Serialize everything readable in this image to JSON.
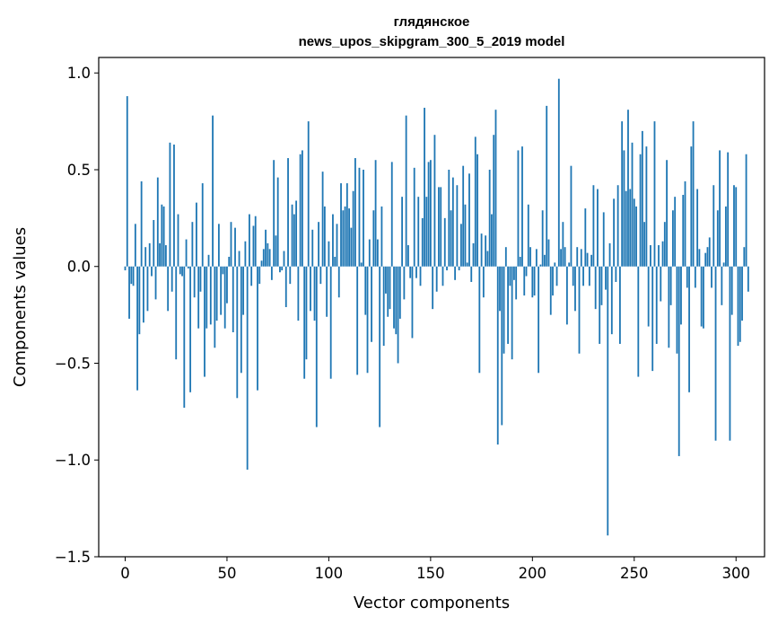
{
  "chart_data": {
    "type": "bar",
    "title_line1": "глядянское",
    "title_line2": "news_upos_skipgram_300_5_2019 model",
    "xlabel": "Vector components",
    "ylabel": "Components values",
    "xlim": [
      -13,
      314
    ],
    "ylim": [
      -1.5,
      1.08
    ],
    "xticks": [
      0,
      50,
      100,
      150,
      200,
      250,
      300
    ],
    "xtick_labels": [
      "0",
      "50",
      "100",
      "150",
      "200",
      "250",
      "300"
    ],
    "yticks": [
      -1.5,
      -1.0,
      -0.5,
      0.0,
      0.5,
      1.0
    ],
    "ytick_labels": [
      "−1.5",
      "−1.0",
      "−0.5",
      "0.0",
      "0.5",
      "1.0"
    ],
    "bar_color": "#1f77b4",
    "values": [
      -0.02,
      0.88,
      -0.27,
      -0.09,
      -0.1,
      0.22,
      -0.64,
      -0.35,
      0.44,
      -0.29,
      0.1,
      -0.23,
      0.12,
      -0.05,
      0.24,
      -0.17,
      0.46,
      0.12,
      0.32,
      0.31,
      0.11,
      -0.23,
      0.64,
      -0.13,
      0.63,
      -0.48,
      0.27,
      -0.04,
      -0.05,
      -0.73,
      0.14,
      -0.01,
      -0.65,
      0.23,
      -0.16,
      0.33,
      -0.32,
      -0.13,
      0.43,
      -0.57,
      -0.32,
      0.06,
      -0.3,
      0.78,
      -0.42,
      -0.28,
      0.22,
      -0.25,
      -0.04,
      -0.32,
      -0.19,
      0.05,
      0.23,
      -0.34,
      0.2,
      -0.68,
      0.08,
      -0.55,
      -0.25,
      0.13,
      -1.05,
      0.27,
      -0.1,
      0.21,
      0.26,
      -0.64,
      -0.09,
      0.03,
      0.09,
      0.19,
      0.12,
      0.09,
      -0.07,
      0.55,
      0.16,
      0.46,
      -0.03,
      -0.02,
      0.08,
      -0.21,
      0.56,
      -0.09,
      0.32,
      0.27,
      0.34,
      -0.28,
      0.58,
      0.6,
      -0.58,
      -0.48,
      0.75,
      -0.23,
      0.19,
      -0.28,
      -0.83,
      0.23,
      -0.09,
      0.49,
      0.31,
      -0.26,
      0.13,
      -0.58,
      0.27,
      0.05,
      0.22,
      -0.16,
      0.43,
      0.29,
      0.31,
      0.43,
      0.3,
      0.2,
      0.39,
      0.56,
      -0.56,
      0.51,
      0.02,
      0.5,
      -0.25,
      -0.55,
      0.14,
      -0.39,
      0.29,
      0.55,
      0.14,
      -0.83,
      0.31,
      -0.41,
      -0.14,
      -0.26,
      -0.22,
      0.54,
      -0.32,
      -0.35,
      -0.5,
      -0.27,
      0.36,
      -0.17,
      0.78,
      0.11,
      -0.06,
      -0.37,
      0.51,
      -0.06,
      0.36,
      -0.1,
      0.25,
      0.82,
      0.36,
      0.54,
      0.55,
      -0.22,
      0.68,
      -0.13,
      0.41,
      0.41,
      -0.1,
      0.25,
      -0.02,
      0.5,
      0.29,
      0.46,
      -0.07,
      0.42,
      -0.02,
      0.22,
      0.52,
      0.32,
      0.02,
      0.48,
      -0.08,
      0.12,
      0.67,
      0.58,
      -0.55,
      0.17,
      -0.16,
      0.16,
      0.08,
      0.5,
      0.27,
      0.68,
      0.81,
      -0.92,
      -0.23,
      -0.82,
      -0.45,
      0.1,
      -0.4,
      -0.1,
      -0.48,
      -0.07,
      -0.17,
      0.6,
      0.05,
      0.62,
      -0.15,
      -0.05,
      0.32,
      0.1,
      -0.16,
      -0.15,
      0.09,
      -0.55,
      0.01,
      0.29,
      0.06,
      0.83,
      0.14,
      -0.25,
      -0.15,
      0.02,
      -0.1,
      0.97,
      0.09,
      0.23,
      0.1,
      -0.3,
      0.02,
      0.52,
      -0.1,
      -0.23,
      0.1,
      -0.45,
      0.09,
      -0.1,
      0.3,
      0.07,
      -0.1,
      0.06,
      0.42,
      -0.22,
      0.4,
      -0.4,
      -0.2,
      0.28,
      -0.12,
      -1.39,
      0.12,
      -0.35,
      0.35,
      -0.08,
      0.42,
      -0.4,
      0.75,
      0.6,
      0.39,
      0.81,
      0.4,
      0.64,
      0.35,
      0.31,
      -0.57,
      0.58,
      0.7,
      0.23,
      0.62,
      -0.31,
      0.11,
      -0.54,
      0.75,
      -0.4,
      0.11,
      -0.18,
      0.13,
      0.23,
      0.55,
      -0.42,
      -0.2,
      0.29,
      0.36,
      -0.45,
      -0.98,
      -0.3,
      0.37,
      0.44,
      -0.11,
      -0.65,
      0.62,
      0.75,
      -0.11,
      0.4,
      0.09,
      -0.31,
      -0.32,
      0.07,
      0.1,
      0.15,
      -0.11,
      0.42,
      -0.9,
      0.29,
      0.6,
      -0.2,
      0.02,
      0.31,
      0.59,
      -0.9,
      -0.25,
      0.42,
      0.41,
      -0.41,
      -0.39,
      -0.28,
      0.1,
      0.58,
      -0.13
    ]
  }
}
